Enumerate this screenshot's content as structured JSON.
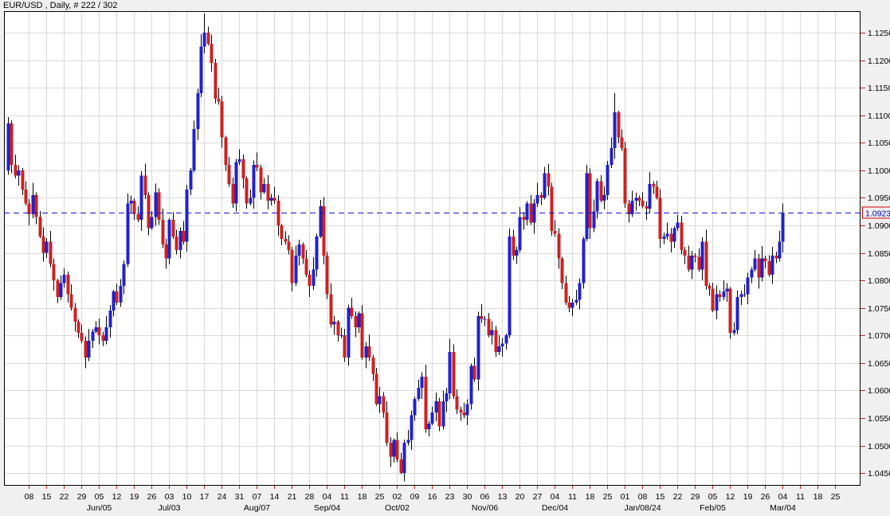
{
  "title": "EUR/USD , Daily, # 222 / 302",
  "chart_data": {
    "type": "candlestick",
    "symbol": "EUR/USD",
    "timeframe": "Daily",
    "bar_count_label": "# 222 / 302",
    "current_price": 1.0923,
    "price_line_label": "1.0923",
    "y_axis": {
      "labels": [
        "1.1250",
        "1.1200",
        "1.1150",
        "1.1100",
        "1.1050",
        "1.1000",
        "1.0950",
        "1.0900",
        "1.0850",
        "1.0800",
        "1.0750",
        "1.0700",
        "1.0650",
        "1.0600",
        "1.0550",
        "1.0500",
        "1.0450"
      ],
      "max": 1.125,
      "min": 1.045,
      "step": 0.005,
      "view_top": 1.1289,
      "view_bottom": 1.0427,
      "grid": true
    },
    "x_axis": {
      "week_labels": [
        "08",
        "15",
        "22",
        "29",
        "05",
        "12",
        "19",
        "26",
        "03",
        "10",
        "17",
        "24",
        "31",
        "07",
        "14",
        "21",
        "28",
        "04",
        "11",
        "18",
        "25",
        "02",
        "09",
        "16",
        "23",
        "30",
        "06",
        "13",
        "20",
        "27",
        "04",
        "11",
        "18",
        "25",
        "01",
        "08",
        "15",
        "22",
        "29",
        "05",
        "12",
        "19",
        "26",
        "04",
        "11",
        "18",
        "25"
      ],
      "month_labels": [
        {
          "label": "Jun/05",
          "week": 4
        },
        {
          "label": "Jul/03",
          "week": 8
        },
        {
          "label": "Aug/07",
          "week": 13
        },
        {
          "label": "Sep/04",
          "week": 17
        },
        {
          "label": "Oct/02",
          "week": 21
        },
        {
          "label": "Nov/06",
          "week": 26
        },
        {
          "label": "Dec/04",
          "week": 30
        },
        {
          "label": "Jan/08/24",
          "week": 35
        },
        {
          "label": "Feb/05",
          "week": 39
        },
        {
          "label": "Mar/04",
          "week": 43
        }
      ]
    },
    "candles": {
      "first_open": 1.1,
      "closes": [
        1.1085,
        1.101,
        1.099,
        1.1,
        1.0965,
        1.094,
        1.092,
        1.0955,
        1.0915,
        1.088,
        1.085,
        1.087,
        1.083,
        1.08,
        1.077,
        1.0795,
        1.081,
        1.0775,
        1.075,
        1.0725,
        1.0705,
        1.069,
        1.066,
        1.069,
        1.0707,
        1.0715,
        1.07,
        1.069,
        1.0715,
        1.0745,
        1.078,
        1.076,
        1.079,
        1.083,
        1.094,
        1.0945,
        1.092,
        1.091,
        1.099,
        1.0955,
        1.0895,
        1.0915,
        1.096,
        1.091,
        1.0865,
        1.084,
        1.091,
        1.088,
        1.0855,
        1.089,
        1.087,
        1.0965,
        1.1,
        1.1075,
        1.114,
        1.1225,
        1.125,
        1.123,
        1.1195,
        1.113,
        1.1125,
        1.106,
        1.101,
        1.0975,
        1.094,
        1.1015,
        1.102,
        1.0985,
        1.094,
        1.095,
        1.101,
        1.1005,
        1.096,
        1.0975,
        1.0945,
        1.095,
        1.0945,
        1.09,
        1.0875,
        1.087,
        1.0855,
        1.0795,
        1.0845,
        1.0865,
        1.084,
        1.081,
        1.079,
        1.082,
        1.088,
        1.0935,
        1.0845,
        1.0775,
        1.072,
        1.0725,
        1.07,
        1.07,
        1.066,
        1.075,
        1.0735,
        1.0715,
        1.074,
        1.066,
        1.068,
        1.066,
        1.063,
        1.0575,
        1.059,
        1.056,
        1.0505,
        1.048,
        1.051,
        1.0475,
        1.045,
        1.0505,
        1.051,
        1.0555,
        1.0585,
        1.0605,
        1.0625,
        1.053,
        1.054,
        1.056,
        1.058,
        1.0535,
        1.058,
        1.0595,
        1.067,
        1.059,
        1.0565,
        1.056,
        1.0555,
        1.0575,
        1.0645,
        1.062,
        1.0735,
        1.073,
        1.073,
        1.07,
        1.071,
        1.067,
        1.068,
        1.0685,
        1.07,
        1.088,
        1.0845,
        1.0855,
        1.0915,
        1.091,
        1.094,
        1.0905,
        1.094,
        1.0955,
        1.095,
        1.0995,
        1.097,
        1.089,
        1.0885,
        1.084,
        1.0795,
        1.076,
        1.075,
        1.076,
        1.0765,
        1.0795,
        1.0875,
        1.0995,
        1.0895,
        1.0925,
        1.098,
        1.0945,
        1.0955,
        1.101,
        1.104,
        1.1105,
        1.106,
        1.104,
        1.094,
        1.092,
        1.0945,
        1.095,
        1.0945,
        1.0935,
        1.093,
        1.0975,
        1.097,
        1.095,
        1.0875,
        1.088,
        1.0885,
        1.087,
        1.0895,
        1.0905,
        1.0855,
        1.0845,
        1.082,
        1.0845,
        1.0843,
        1.082,
        1.087,
        1.079,
        1.0785,
        1.0745,
        1.0775,
        1.077,
        1.078,
        1.0785,
        1.0705,
        1.071,
        1.077,
        1.0775,
        1.0775,
        1.0805,
        1.082,
        1.084,
        1.0805,
        1.084,
        1.0835,
        1.081,
        1.0845,
        1.084,
        1.087,
        1.0923
      ],
      "wick_up_pips": [
        12,
        6,
        18,
        9,
        4,
        15,
        8,
        22,
        5,
        11,
        16,
        7,
        20,
        10,
        3,
        14
      ],
      "wick_down_pips": [
        8,
        15,
        5,
        18,
        10,
        4,
        20,
        7,
        13,
        3,
        16,
        9,
        6,
        19,
        11,
        5
      ],
      "overrides": {
        "56": {
          "high": 1.1285
        },
        "112": {
          "low": 1.0448
        },
        "126": {
          "high": 1.0694
        },
        "173": {
          "high": 1.114
        },
        "221": {
          "high": 1.094
        }
      }
    },
    "colors": {
      "background": "#f0f0f0",
      "plot_background": "#ffffff",
      "grid": "#d9d9d9",
      "border": "#000000",
      "up": "#2121cc",
      "down": "#cc2121",
      "wick": "#000000",
      "price_line": "#1515cc",
      "tag_border": "#cc0000",
      "tag_text": "#0000cc",
      "tick": "#cc2222",
      "text": "#000000"
    }
  }
}
